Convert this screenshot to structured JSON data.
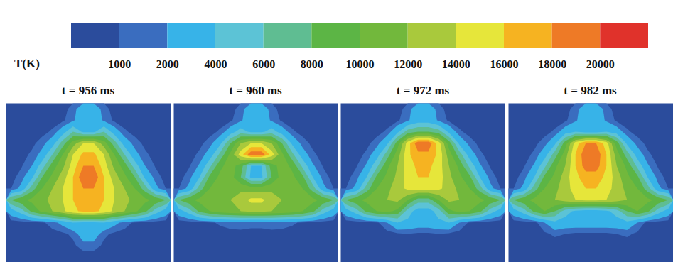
{
  "chart_data": {
    "type": "contour",
    "tick_labels": false,
    "colorbar": {
      "label": "T(K)",
      "ticks": [
        1000,
        2000,
        4000,
        6000,
        8000,
        10000,
        12000,
        14000,
        16000,
        18000,
        20000
      ],
      "colors": [
        "#2b4c9c",
        "#3a6dbf",
        "#37b3e8",
        "#5cc3d6",
        "#5fbd92",
        "#5cb545",
        "#72b83c",
        "#a9c93c",
        "#e6e63a",
        "#f6b321",
        "#ee7a26",
        "#e0322b"
      ]
    },
    "panels": [
      {
        "title": "t = 956 ms",
        "cells": [
          [
            500,
            500,
            500,
            500,
            500,
            500,
            1500,
            3000,
            3000,
            1500,
            500,
            500,
            500,
            500,
            500,
            500
          ],
          [
            500,
            500,
            500,
            500,
            500,
            800,
            1800,
            3000,
            3000,
            1800,
            800,
            500,
            500,
            500,
            500,
            500
          ],
          [
            500,
            500,
            500,
            600,
            1200,
            3000,
            6000,
            3500,
            3500,
            6000,
            3000,
            1200,
            600,
            500,
            500,
            500
          ],
          [
            500,
            500,
            700,
            1500,
            3000,
            7000,
            11000,
            14000,
            14000,
            11000,
            7000,
            3000,
            1500,
            700,
            500,
            500
          ],
          [
            500,
            600,
            1200,
            2500,
            6000,
            10000,
            14000,
            16500,
            16500,
            14000,
            10000,
            6000,
            2500,
            1200,
            600,
            500
          ],
          [
            500,
            900,
            2000,
            5000,
            9000,
            11500,
            15000,
            18000,
            18000,
            15000,
            11500,
            9000,
            5000,
            2000,
            900,
            500
          ],
          [
            600,
            1500,
            3500,
            8000,
            10500,
            13000,
            16000,
            19500,
            19500,
            16000,
            13000,
            10500,
            8000,
            3500,
            1500,
            600
          ],
          [
            1000,
            2500,
            7000,
            10000,
            12000,
            14000,
            16000,
            18000,
            18000,
            16000,
            14000,
            12000,
            10000,
            7000,
            2500,
            1000
          ],
          [
            8000,
            9500,
            10500,
            11500,
            12500,
            14000,
            16000,
            17000,
            17000,
            16000,
            14000,
            12500,
            11500,
            10500,
            9500,
            8000
          ],
          [
            3000,
            5000,
            8500,
            10500,
            12000,
            13500,
            15500,
            16500,
            16500,
            15500,
            13500,
            12000,
            10500,
            8500,
            5000,
            3000
          ],
          [
            500,
            500,
            600,
            800,
            1500,
            2500,
            4000,
            3500,
            3500,
            4000,
            2500,
            1500,
            800,
            600,
            500,
            500
          ],
          [
            500,
            500,
            500,
            500,
            600,
            800,
            1200,
            3000,
            3000,
            1200,
            800,
            600,
            500,
            500,
            500,
            500
          ],
          [
            500,
            500,
            500,
            500,
            500,
            600,
            800,
            1500,
            1500,
            800,
            600,
            500,
            500,
            500,
            500,
            500
          ],
          [
            500,
            500,
            500,
            500,
            500,
            500,
            500,
            500,
            500,
            500,
            500,
            500,
            500,
            500,
            500,
            500
          ]
        ]
      },
      {
        "title": "t = 960 ms",
        "cells": [
          [
            500,
            500,
            500,
            500,
            500,
            500,
            1500,
            3000,
            3000,
            1500,
            500,
            500,
            500,
            500,
            500,
            500
          ],
          [
            500,
            500,
            500,
            500,
            500,
            800,
            1800,
            3000,
            3000,
            1800,
            800,
            500,
            500,
            500,
            500,
            500
          ],
          [
            500,
            500,
            500,
            600,
            1200,
            3000,
            5000,
            3500,
            3500,
            5000,
            3000,
            1200,
            600,
            500,
            500,
            500
          ],
          [
            500,
            500,
            700,
            1500,
            3500,
            8000,
            12000,
            14000,
            14000,
            12000,
            8000,
            3500,
            1500,
            700,
            500,
            500
          ],
          [
            500,
            600,
            1200,
            2800,
            6500,
            10500,
            15000,
            19500,
            19500,
            15000,
            10500,
            6500,
            2800,
            1200,
            600,
            500
          ],
          [
            500,
            900,
            2200,
            5500,
            9500,
            11000,
            9000,
            4000,
            4000,
            9000,
            11000,
            9500,
            5500,
            2200,
            900,
            500
          ],
          [
            600,
            1500,
            4000,
            8500,
            10500,
            11000,
            8000,
            3500,
            3500,
            8000,
            11000,
            10500,
            8500,
            4000,
            1500,
            600
          ],
          [
            1000,
            2500,
            7000,
            10000,
            11000,
            11500,
            11500,
            11000,
            11000,
            11500,
            11500,
            11000,
            10000,
            7000,
            2500,
            1000
          ],
          [
            8000,
            9500,
            10500,
            11000,
            11500,
            12000,
            13000,
            14500,
            14500,
            13000,
            12000,
            11500,
            11000,
            10500,
            9500,
            8000
          ],
          [
            3000,
            5000,
            8500,
            10000,
            11000,
            11500,
            12000,
            12500,
            12500,
            12000,
            11500,
            11000,
            10000,
            8500,
            5000,
            3000
          ],
          [
            500,
            500,
            600,
            800,
            1200,
            1500,
            1500,
            1200,
            1200,
            1500,
            1500,
            1200,
            800,
            600,
            500,
            500
          ],
          [
            500,
            500,
            500,
            500,
            500,
            600,
            700,
            800,
            800,
            700,
            600,
            500,
            500,
            500,
            500,
            500
          ],
          [
            500,
            500,
            500,
            500,
            500,
            500,
            500,
            500,
            500,
            500,
            500,
            500,
            500,
            500,
            500,
            500
          ],
          [
            500,
            500,
            500,
            500,
            500,
            500,
            500,
            500,
            500,
            500,
            500,
            500,
            500,
            500,
            500,
            500
          ]
        ]
      },
      {
        "title": "t = 972 ms",
        "cells": [
          [
            500,
            500,
            500,
            500,
            500,
            500,
            1500,
            3000,
            3000,
            1500,
            500,
            500,
            500,
            500,
            500,
            500
          ],
          [
            500,
            500,
            500,
            500,
            500,
            800,
            1800,
            3000,
            3000,
            1800,
            800,
            500,
            500,
            500,
            500,
            500
          ],
          [
            500,
            500,
            500,
            600,
            1200,
            3500,
            7000,
            8000,
            8000,
            7000,
            3500,
            1200,
            600,
            500,
            500,
            500
          ],
          [
            500,
            500,
            700,
            1500,
            3500,
            9000,
            15000,
            19500,
            19500,
            15000,
            9000,
            3500,
            1500,
            700,
            500,
            500
          ],
          [
            500,
            600,
            1200,
            3000,
            7000,
            11000,
            15500,
            17500,
            17500,
            15500,
            11000,
            7000,
            3000,
            1200,
            600,
            500
          ],
          [
            500,
            900,
            2200,
            5500,
            9500,
            12000,
            15000,
            16500,
            16500,
            15000,
            12000,
            9500,
            5500,
            2200,
            900,
            500
          ],
          [
            600,
            1500,
            4000,
            8500,
            10500,
            12500,
            15000,
            16000,
            16000,
            15000,
            12500,
            10500,
            8500,
            4000,
            1500,
            600
          ],
          [
            1000,
            2500,
            7000,
            10000,
            11500,
            13000,
            14500,
            15000,
            15000,
            14500,
            13000,
            11500,
            10000,
            7000,
            2500,
            1000
          ],
          [
            8000,
            9500,
            10500,
            11000,
            12000,
            12500,
            10000,
            7000,
            7000,
            10000,
            12500,
            12000,
            11000,
            10500,
            9500,
            8000
          ],
          [
            3000,
            5000,
            8500,
            10000,
            10500,
            9500,
            5000,
            3000,
            3000,
            5000,
            9500,
            10500,
            10000,
            8500,
            5000,
            3000
          ],
          [
            500,
            500,
            600,
            800,
            2000,
            4000,
            3500,
            3000,
            3000,
            3500,
            4000,
            2000,
            800,
            600,
            500,
            500
          ],
          [
            500,
            500,
            500,
            500,
            600,
            800,
            1000,
            800,
            800,
            1000,
            800,
            600,
            500,
            500,
            500,
            500
          ],
          [
            500,
            500,
            500,
            500,
            500,
            500,
            500,
            500,
            500,
            500,
            500,
            500,
            500,
            500,
            500,
            500
          ],
          [
            500,
            500,
            500,
            500,
            500,
            500,
            500,
            500,
            500,
            500,
            500,
            500,
            500,
            500,
            500,
            500
          ]
        ]
      },
      {
        "title": "t = 982 ms",
        "cells": [
          [
            500,
            500,
            500,
            500,
            500,
            500,
            1500,
            3000,
            3000,
            1500,
            500,
            500,
            500,
            500,
            500,
            500
          ],
          [
            500,
            500,
            500,
            500,
            500,
            800,
            1800,
            3000,
            3000,
            1800,
            800,
            500,
            500,
            500,
            500,
            500
          ],
          [
            500,
            500,
            500,
            600,
            1200,
            3000,
            4000,
            3000,
            3000,
            4000,
            3000,
            1200,
            600,
            500,
            500,
            500
          ],
          [
            500,
            500,
            700,
            1500,
            3500,
            9000,
            15000,
            18000,
            18000,
            15000,
            9000,
            3500,
            1500,
            700,
            500,
            500
          ],
          [
            500,
            600,
            1200,
            3000,
            7000,
            11000,
            16000,
            19500,
            19500,
            16000,
            11000,
            7000,
            3000,
            1200,
            600,
            500
          ],
          [
            500,
            900,
            2200,
            5500,
            9500,
            12000,
            16000,
            19000,
            19000,
            16000,
            12000,
            9500,
            5500,
            2200,
            900,
            500
          ],
          [
            600,
            1500,
            4000,
            8500,
            10500,
            13000,
            15500,
            17000,
            17000,
            15500,
            13000,
            10500,
            8500,
            4000,
            1500,
            600
          ],
          [
            1000,
            2500,
            7000,
            10000,
            11500,
            13000,
            15000,
            16000,
            16000,
            15000,
            13000,
            11500,
            10000,
            7000,
            2500,
            1000
          ],
          [
            8000,
            9500,
            10500,
            11000,
            12000,
            13000,
            14000,
            14500,
            14500,
            14000,
            13000,
            12000,
            11000,
            10500,
            9500,
            8000
          ],
          [
            3000,
            5000,
            8500,
            10000,
            8000,
            5000,
            3500,
            3000,
            3000,
            3500,
            5000,
            8000,
            10000,
            8500,
            5000,
            3000
          ],
          [
            500,
            500,
            600,
            2000,
            3500,
            3000,
            3000,
            3000,
            3000,
            3000,
            3000,
            3500,
            2000,
            600,
            500,
            500
          ],
          [
            500,
            500,
            500,
            800,
            1200,
            1000,
            800,
            800,
            800,
            800,
            1000,
            1200,
            800,
            500,
            500,
            500
          ],
          [
            500,
            500,
            500,
            500,
            500,
            500,
            500,
            500,
            500,
            500,
            500,
            500,
            500,
            500,
            500,
            500
          ],
          [
            500,
            500,
            500,
            500,
            500,
            500,
            500,
            500,
            500,
            500,
            500,
            500,
            500,
            500,
            500,
            500
          ]
        ]
      }
    ]
  }
}
